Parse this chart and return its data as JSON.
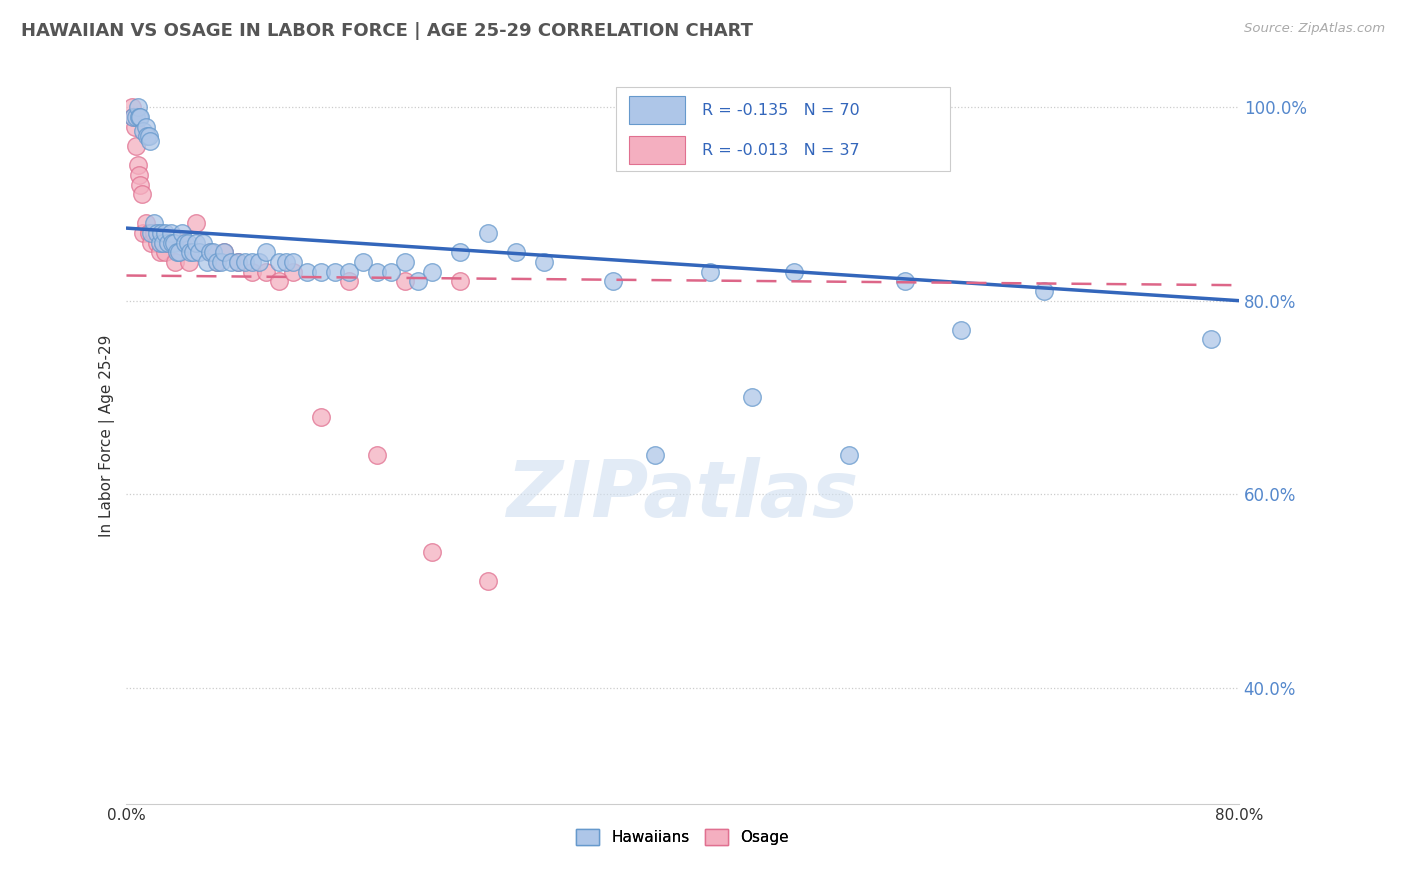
{
  "title": "HAWAIIAN VS OSAGE IN LABOR FORCE | AGE 25-29 CORRELATION CHART",
  "source_text": "Source: ZipAtlas.com",
  "ylabel": "In Labor Force | Age 25-29",
  "xlim": [
    0.0,
    0.8
  ],
  "ylim": [
    0.28,
    1.04
  ],
  "yticks": [
    0.4,
    0.6,
    0.8,
    1.0
  ],
  "ytick_labels": [
    "40.0%",
    "60.0%",
    "80.0%",
    "100.0%"
  ],
  "xticks": [
    0.0,
    0.1,
    0.2,
    0.3,
    0.4,
    0.5,
    0.6,
    0.7,
    0.8
  ],
  "xtick_labels": [
    "0.0%",
    "",
    "",
    "",
    "",
    "",
    "",
    "",
    "80.0%"
  ],
  "hawaiian_color": "#aec6e8",
  "osage_color": "#f4afc0",
  "hawaiian_edge_color": "#6699cc",
  "osage_edge_color": "#e07090",
  "trend_blue": "#3366bb",
  "trend_pink": "#dd6688",
  "legend_R_hawaiian": "R = -0.135",
  "legend_N_hawaiian": "N = 70",
  "legend_R_osage": "R = -0.013",
  "legend_N_osage": "N = 37",
  "hawaiian_x": [
    0.005,
    0.007,
    0.008,
    0.009,
    0.01,
    0.012,
    0.014,
    0.015,
    0.016,
    0.017,
    0.018,
    0.02,
    0.022,
    0.024,
    0.025,
    0.026,
    0.028,
    0.03,
    0.032,
    0.033,
    0.034,
    0.036,
    0.038,
    0.04,
    0.042,
    0.044,
    0.046,
    0.048,
    0.05,
    0.052,
    0.055,
    0.058,
    0.06,
    0.062,
    0.065,
    0.068,
    0.07,
    0.075,
    0.08,
    0.085,
    0.09,
    0.095,
    0.1,
    0.11,
    0.115,
    0.12,
    0.13,
    0.14,
    0.15,
    0.16,
    0.17,
    0.18,
    0.19,
    0.2,
    0.21,
    0.22,
    0.24,
    0.26,
    0.28,
    0.3,
    0.35,
    0.38,
    0.42,
    0.45,
    0.48,
    0.52,
    0.56,
    0.6,
    0.66,
    0.78
  ],
  "hawaiian_y": [
    0.99,
    0.99,
    1.0,
    0.99,
    0.99,
    0.975,
    0.98,
    0.97,
    0.97,
    0.965,
    0.87,
    0.88,
    0.87,
    0.86,
    0.87,
    0.86,
    0.87,
    0.86,
    0.87,
    0.86,
    0.86,
    0.85,
    0.85,
    0.87,
    0.86,
    0.86,
    0.85,
    0.85,
    0.86,
    0.85,
    0.86,
    0.84,
    0.85,
    0.85,
    0.84,
    0.84,
    0.85,
    0.84,
    0.84,
    0.84,
    0.84,
    0.84,
    0.85,
    0.84,
    0.84,
    0.84,
    0.83,
    0.83,
    0.83,
    0.83,
    0.84,
    0.83,
    0.83,
    0.84,
    0.82,
    0.83,
    0.85,
    0.87,
    0.85,
    0.84,
    0.82,
    0.64,
    0.83,
    0.7,
    0.83,
    0.64,
    0.82,
    0.77,
    0.81,
    0.76
  ],
  "osage_x": [
    0.004,
    0.005,
    0.006,
    0.007,
    0.008,
    0.009,
    0.01,
    0.011,
    0.012,
    0.014,
    0.016,
    0.018,
    0.02,
    0.022,
    0.024,
    0.026,
    0.028,
    0.03,
    0.035,
    0.04,
    0.045,
    0.05,
    0.06,
    0.065,
    0.07,
    0.08,
    0.09,
    0.1,
    0.11,
    0.12,
    0.14,
    0.16,
    0.18,
    0.2,
    0.22,
    0.24,
    0.26
  ],
  "osage_y": [
    1.0,
    0.99,
    0.98,
    0.96,
    0.94,
    0.93,
    0.92,
    0.91,
    0.87,
    0.88,
    0.87,
    0.86,
    0.87,
    0.86,
    0.85,
    0.86,
    0.85,
    0.86,
    0.84,
    0.86,
    0.84,
    0.88,
    0.85,
    0.84,
    0.85,
    0.84,
    0.83,
    0.83,
    0.82,
    0.83,
    0.68,
    0.82,
    0.64,
    0.82,
    0.54,
    0.82,
    0.51
  ],
  "watermark": "ZIPatlas",
  "background_color": "#ffffff"
}
